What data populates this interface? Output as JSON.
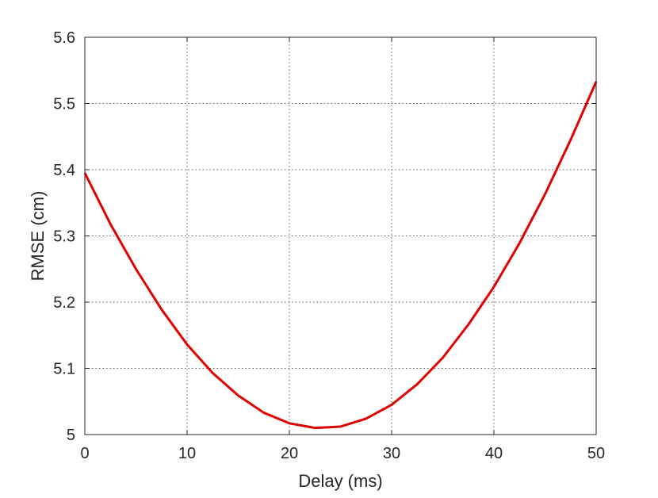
{
  "chart_data": {
    "type": "line",
    "title": "",
    "xlabel": "Delay (ms)",
    "ylabel": "RMSE (cm)",
    "xlim": [
      0,
      50
    ],
    "ylim": [
      5.0,
      5.6
    ],
    "grid": true,
    "grid_style": "dotted",
    "xticks": [
      0,
      10,
      20,
      30,
      40,
      50
    ],
    "xtick_labels": [
      "0",
      "10",
      "20",
      "30",
      "40",
      "50"
    ],
    "yticks": [
      5.0,
      5.1,
      5.2,
      5.3,
      5.4,
      5.5,
      5.6
    ],
    "ytick_labels": [
      "5",
      "5.1",
      "5.2",
      "5.3",
      "5.4",
      "5.5",
      "5.6"
    ],
    "series": [
      {
        "color": "#e00000",
        "x": [
          0,
          2.5,
          5,
          7.5,
          10,
          12.5,
          15,
          17.5,
          20,
          22.5,
          25,
          27.5,
          30,
          32.5,
          35,
          37.5,
          40,
          42.5,
          45,
          47.5,
          50
        ],
        "y": [
          5.395,
          5.318,
          5.25,
          5.189,
          5.136,
          5.093,
          5.059,
          5.033,
          5.017,
          5.01,
          5.012,
          5.024,
          5.045,
          5.076,
          5.116,
          5.166,
          5.223,
          5.289,
          5.363,
          5.445,
          5.533
        ]
      }
    ]
  }
}
